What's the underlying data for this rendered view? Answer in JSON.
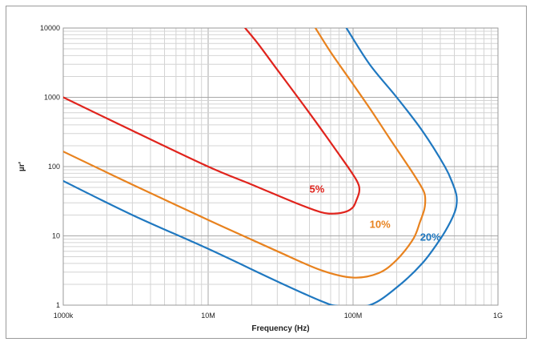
{
  "chart_data": {
    "type": "line",
    "xlabel": "Frequency (Hz)",
    "ylabel": "µr'",
    "xscale": "log",
    "yscale": "log",
    "xlim": [
      1000000,
      1000000000
    ],
    "ylim": [
      1,
      10000
    ],
    "x_ticks": [
      {
        "value": 1000000,
        "label": "1000k"
      },
      {
        "value": 10000000,
        "label": "10M"
      },
      {
        "value": 100000000,
        "label": "100M"
      },
      {
        "value": 1000000000,
        "label": "1G"
      }
    ],
    "y_ticks": [
      {
        "value": 1,
        "label": "1"
      },
      {
        "value": 10,
        "label": "10"
      },
      {
        "value": 100,
        "label": "100"
      },
      {
        "value": 1000,
        "label": "1000"
      },
      {
        "value": 10000,
        "label": "10000"
      }
    ],
    "grid": true,
    "legend": "none",
    "series": [
      {
        "name": "5%",
        "color": "#e0231c",
        "points": [
          [
            1000000,
            1000
          ],
          [
            3000000,
            330
          ],
          [
            10000000,
            100
          ],
          [
            20000000,
            55
          ],
          [
            40000000,
            30
          ],
          [
            60000000,
            22
          ],
          [
            75000000,
            21
          ],
          [
            90000000,
            22.5
          ],
          [
            100000000,
            26
          ],
          [
            105000000,
            32
          ],
          [
            110000000,
            42
          ],
          [
            110000000,
            52
          ],
          [
            105000000,
            65
          ],
          [
            95000000,
            90
          ],
          [
            80000000,
            150
          ],
          [
            60000000,
            350
          ],
          [
            45000000,
            800
          ],
          [
            30000000,
            2500
          ],
          [
            22000000,
            6000
          ],
          [
            18000000,
            10000
          ]
        ]
      },
      {
        "name": "10%",
        "color": "#e8821e",
        "points": [
          [
            1000000,
            165
          ],
          [
            3000000,
            55
          ],
          [
            10000000,
            17
          ],
          [
            30000000,
            6
          ],
          [
            60000000,
            3.2
          ],
          [
            100000000,
            2.5
          ],
          [
            150000000,
            2.9
          ],
          [
            200000000,
            4.5
          ],
          [
            260000000,
            9
          ],
          [
            290000000,
            16
          ],
          [
            310000000,
            24
          ],
          [
            315000000,
            33
          ],
          [
            310000000,
            42
          ],
          [
            290000000,
            55
          ],
          [
            250000000,
            90
          ],
          [
            180000000,
            250
          ],
          [
            130000000,
            700
          ],
          [
            95000000,
            1800
          ],
          [
            70000000,
            4500
          ],
          [
            55000000,
            10000
          ]
        ]
      },
      {
        "name": "20%",
        "color": "#1f78c0",
        "points": [
          [
            1000000,
            62
          ],
          [
            3000000,
            20
          ],
          [
            10000000,
            6.5
          ],
          [
            30000000,
            2.2
          ],
          [
            60000000,
            1.15
          ],
          [
            80000000,
            0.97
          ],
          [
            130000000,
            1
          ],
          [
            200000000,
            1.8
          ],
          [
            300000000,
            4
          ],
          [
            400000000,
            9
          ],
          [
            470000000,
            16
          ],
          [
            510000000,
            24
          ],
          [
            520000000,
            32
          ],
          [
            515000000,
            40
          ],
          [
            490000000,
            55
          ],
          [
            430000000,
            100
          ],
          [
            300000000,
            330
          ],
          [
            200000000,
            1000
          ],
          [
            130000000,
            3000
          ],
          [
            90000000,
            10000
          ]
        ]
      }
    ],
    "annotations": [
      {
        "text": "5%",
        "x": 50000000,
        "y": 42,
        "color": "#e0231c"
      },
      {
        "text": "10%",
        "x": 130000000,
        "y": 13,
        "color": "#e8821e"
      },
      {
        "text": "20%",
        "x": 290000000,
        "y": 8.5,
        "color": "#1f78c0"
      }
    ]
  }
}
